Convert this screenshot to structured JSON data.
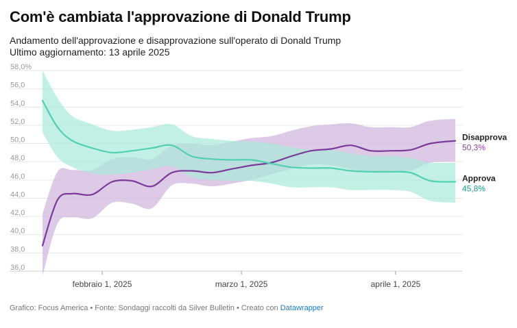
{
  "header": {
    "title": "Com'è cambiata l'approvazione di Donald Trump",
    "subtitle_line1": "Andamento dell'approvazione e disapprovazione sull'operato di Donald Trump",
    "subtitle_line2": "Ultimo aggiornamento: 13 aprile 2025"
  },
  "footer": {
    "text": "Grafico: Focus America • Fonte: Sondaggi raccolti da Silver Bulletin • Creato con",
    "link": "Datawrapper"
  },
  "colors": {
    "approve_line": "#4fd1b1",
    "approve_band": "#a9e9d9",
    "approve_label": "#1f9d84",
    "disapprove_line": "#7a3a99",
    "disapprove_band": "#cfb4dd",
    "disapprove_label": "#8b3fa6"
  },
  "chart_data": {
    "type": "line",
    "title": "Com'è cambiata l'approvazione di Donald Trump",
    "ylim": [
      36,
      58
    ],
    "y_ticks": [
      "36,0",
      "38,0",
      "40,0",
      "42,0",
      "44,0",
      "46,0",
      "48,0",
      "50,0",
      "52,0",
      "54,0",
      "56,0",
      "58,0%"
    ],
    "y_tick_values": [
      36,
      38,
      40,
      42,
      44,
      46,
      48,
      50,
      52,
      54,
      56,
      58
    ],
    "x_range": [
      "2025-01-20",
      "2025-04-13"
    ],
    "x_ticks": [
      {
        "date": "2025-02-01",
        "label": "febbraio 1, 2025"
      },
      {
        "date": "2025-03-01",
        "label": "marzo 1, 2025"
      },
      {
        "date": "2025-04-01",
        "label": "aprile 1, 2025"
      }
    ],
    "grid": true,
    "series": [
      {
        "name": "Disapprova",
        "end_label": "50,3%",
        "x": [
          "2025-01-20",
          "2025-01-23",
          "2025-01-26",
          "2025-01-30",
          "2025-02-03",
          "2025-02-07",
          "2025-02-11",
          "2025-02-15",
          "2025-02-19",
          "2025-02-23",
          "2025-02-27",
          "2025-03-03",
          "2025-03-07",
          "2025-03-11",
          "2025-03-15",
          "2025-03-19",
          "2025-03-23",
          "2025-03-27",
          "2025-03-31",
          "2025-04-04",
          "2025-04-08",
          "2025-04-13"
        ],
        "values": [
          38.8,
          43.8,
          44.5,
          44.4,
          45.8,
          45.9,
          45.3,
          46.8,
          47.0,
          46.8,
          47.2,
          47.6,
          47.9,
          48.6,
          49.2,
          49.4,
          49.8,
          49.2,
          49.2,
          49.3,
          50.0,
          50.3
        ],
        "upper": [
          42.3,
          46.9,
          47.1,
          47.1,
          48.3,
          48.5,
          48.3,
          49.8,
          50.0,
          49.8,
          50.2,
          50.6,
          50.8,
          51.4,
          51.9,
          52.1,
          52.2,
          51.8,
          51.8,
          51.8,
          52.5,
          52.7
        ],
        "lower": [
          35.5,
          41.2,
          41.9,
          41.8,
          43.5,
          43.4,
          42.9,
          45.4,
          45.6,
          45.3,
          45.6,
          46.0,
          46.6,
          47.2,
          47.7,
          47.6,
          47.2,
          46.8,
          46.8,
          47.0,
          47.9,
          48.0
        ]
      },
      {
        "name": "Approva",
        "end_label": "45,8%",
        "x": [
          "2025-01-20",
          "2025-01-23",
          "2025-01-26",
          "2025-01-30",
          "2025-02-03",
          "2025-02-07",
          "2025-02-11",
          "2025-02-15",
          "2025-02-19",
          "2025-02-23",
          "2025-02-27",
          "2025-03-03",
          "2025-03-07",
          "2025-03-11",
          "2025-03-15",
          "2025-03-19",
          "2025-03-23",
          "2025-03-27",
          "2025-03-31",
          "2025-04-04",
          "2025-04-08",
          "2025-04-13"
        ],
        "values": [
          54.7,
          51.8,
          50.3,
          49.5,
          49.0,
          49.2,
          49.5,
          49.8,
          48.6,
          48.3,
          48.2,
          48.2,
          47.8,
          47.4,
          47.3,
          47.3,
          47.0,
          46.9,
          46.9,
          46.8,
          45.9,
          45.8
        ],
        "upper": [
          58.0,
          55.0,
          53.0,
          52.1,
          51.4,
          51.5,
          51.8,
          52.1,
          50.8,
          50.5,
          50.3,
          50.2,
          50.0,
          49.6,
          49.3,
          49.3,
          48.9,
          48.6,
          48.6,
          48.4,
          47.9,
          47.9
        ],
        "lower": [
          51.2,
          48.5,
          47.4,
          46.7,
          46.6,
          46.8,
          47.2,
          47.5,
          46.3,
          46.0,
          45.9,
          45.9,
          45.6,
          45.2,
          45.2,
          45.2,
          44.9,
          44.9,
          44.9,
          44.7,
          43.7,
          43.5
        ]
      }
    ]
  }
}
